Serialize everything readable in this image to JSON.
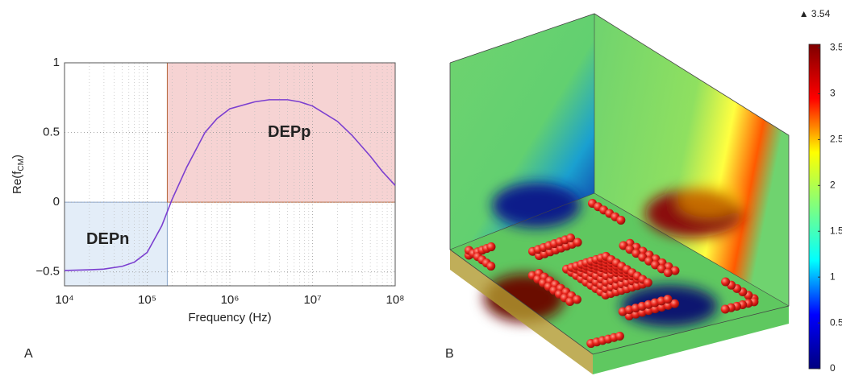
{
  "chart_data": [
    {
      "type": "line",
      "panel": "A",
      "xlabel": "Frequency (Hz)",
      "ylabel": {
        "base": "Re(f",
        "sub": "CM",
        "end": ")"
      },
      "xscale": "log",
      "x": [
        10000,
        20000,
        30000,
        50000,
        70000,
        100000,
        150000,
        200000,
        300000,
        500000,
        700000,
        1000000,
        2000000,
        3000000,
        5000000,
        7000000,
        10000000,
        20000000,
        30000000,
        50000000,
        70000000,
        100000000
      ],
      "series": [
        {
          "name": "Re(fCM)",
          "color": "#7b3fd0",
          "values": [
            -0.49,
            -0.485,
            -0.48,
            -0.46,
            -0.43,
            -0.36,
            -0.17,
            0.02,
            0.25,
            0.5,
            0.6,
            0.67,
            0.72,
            0.735,
            0.735,
            0.72,
            0.69,
            0.58,
            0.48,
            0.33,
            0.22,
            0.12
          ]
        }
      ],
      "regions": [
        {
          "name": "DEPn",
          "x": [
            10000,
            175000
          ],
          "y": [
            -0.6,
            0
          ],
          "color": "#e3edf8",
          "edge": "#8aa6cc"
        },
        {
          "name": "DEPp",
          "x": [
            175000,
            100000000
          ],
          "y": [
            0,
            1
          ],
          "color": "#f6d3d3",
          "edge": "#b5653a"
        }
      ],
      "xlim": [
        10000,
        100000000
      ],
      "ylim": [
        -0.6,
        1
      ],
      "xticks": [
        {
          "value": 10000,
          "label": "10⁴"
        },
        {
          "value": 100000,
          "label": "10⁵"
        },
        {
          "value": 1000000,
          "label": "10⁶"
        },
        {
          "value": 10000000,
          "label": "10⁷"
        },
        {
          "value": 100000000,
          "label": "10⁸"
        }
      ],
      "yticks": [
        {
          "value": -0.5,
          "label": "−0.5"
        },
        0,
        0.5,
        1
      ],
      "grid": true
    },
    {
      "type": "colorbar",
      "panel": "B",
      "zlim": [
        0,
        3.54
      ],
      "zticks": [
        0,
        0.5,
        1,
        1.5,
        2,
        2.5,
        3,
        3.5
      ],
      "max": {
        "value": 3.54,
        "label": "▲ 3.54"
      },
      "colors": [
        "#00007f",
        "#0000ff",
        "#00ffff",
        "#7fff7f",
        "#ffff00",
        "#ff0000",
        "#7f0000"
      ]
    }
  ]
}
